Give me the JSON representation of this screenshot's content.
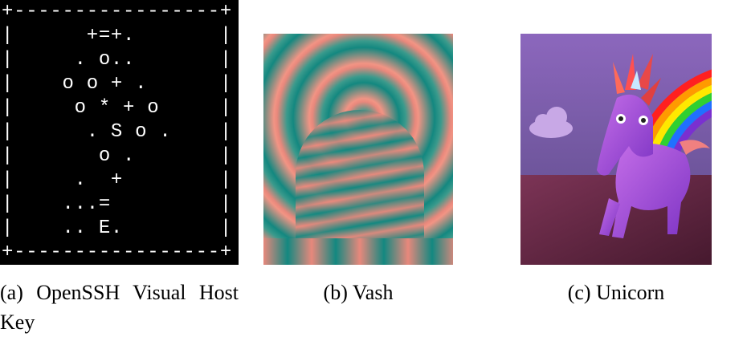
{
  "figures": [
    {
      "art": [
        "+-----------------+",
        "|      +=+.       |",
        "|     . o..       |",
        "|    o o + .      |",
        "|     o * + o     |",
        "|      . S o .    |",
        "|       o .       |",
        "|     .  +        |",
        "|    ...=         |",
        "|    .. E.        |",
        "+-----------------+"
      ],
      "caption": "(a) OpenSSH Visual Host Key"
    },
    {
      "caption": "(b) Vash"
    },
    {
      "caption": "(c) Unicorn"
    }
  ]
}
